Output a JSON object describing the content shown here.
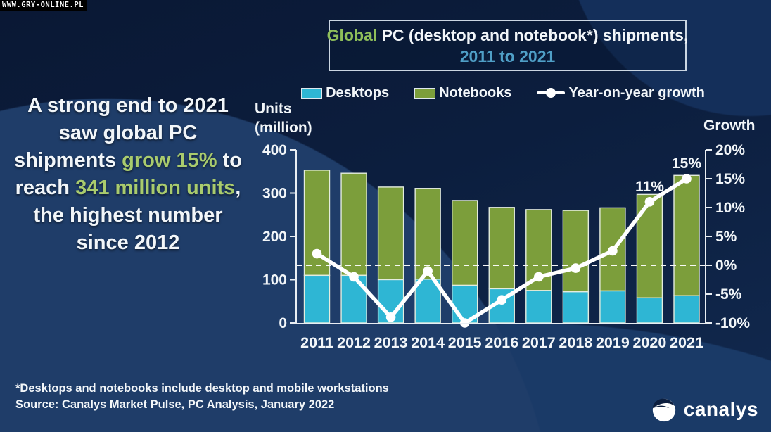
{
  "watermark": "WWW.GRY-ONLINE.PL",
  "title": {
    "line1_segments": [
      {
        "text": "Global",
        "highlight": "green"
      },
      {
        "text": " PC (desktop and notebook*) shipments,",
        "highlight": "none"
      }
    ],
    "subtitle": "2011 to 2021"
  },
  "legend": [
    {
      "label": "Desktops",
      "swatch": "rect",
      "color": "#2EB6D4"
    },
    {
      "label": "Notebooks",
      "swatch": "rect",
      "color": "#7C9E3B"
    },
    {
      "label": "Year-on-year growth",
      "swatch": "line",
      "color": "#FFFFFF"
    }
  ],
  "callout_segments": [
    {
      "text": "A strong end to 2021 saw global PC shipments ",
      "highlight": "none"
    },
    {
      "text": "grow 15%",
      "highlight": "green"
    },
    {
      "text": " to reach ",
      "highlight": "none"
    },
    {
      "text": "341 million units",
      "highlight": "green"
    },
    {
      "text": ", the highest number since 2012",
      "highlight": "none"
    }
  ],
  "axes": {
    "left_title_line1": "Units",
    "left_title_line2": "(million)",
    "right_title": "Growth"
  },
  "footnote": "*Desktops and notebooks include desktop and mobile workstations",
  "source": "Source: Canalys Market Pulse, PC Analysis, January 2022",
  "logo_text": "canalys",
  "colors": {
    "desktop_bar": "#2EB6D4",
    "notebook_bar": "#7C9E3B",
    "growth_line": "#FFFFFF",
    "title_green": "#8EBE5A",
    "subtitle_blue": "#4F9FC7",
    "callout_green": "#A9CB6D",
    "axis_stroke": "#E9EEF3",
    "bar_outline": "#E4ECDE",
    "background": "#0C1E3E"
  },
  "chart_data": {
    "type": "bar",
    "subtype": "stacked-bars-with-line",
    "title": "Global PC (desktop and notebook*) shipments, 2011 to 2021",
    "categories": [
      "2011",
      "2012",
      "2013",
      "2014",
      "2015",
      "2016",
      "2017",
      "2018",
      "2019",
      "2020",
      "2021"
    ],
    "series": [
      {
        "name": "Desktops",
        "type": "bar",
        "stack": 0,
        "color": "#2EB6D4",
        "values": [
          110,
          110,
          100,
          101,
          87,
          79,
          75,
          72,
          74,
          58,
          63
        ]
      },
      {
        "name": "Notebooks",
        "type": "bar",
        "stack": 1,
        "color": "#7C9E3B",
        "values": [
          243,
          236,
          214,
          210,
          196,
          188,
          187,
          188,
          192,
          239,
          278
        ]
      },
      {
        "name": "Year-on-year growth",
        "type": "line",
        "axis": "right",
        "color": "#FFFFFF",
        "values": [
          2,
          -2,
          -9,
          -1,
          -10,
          -6,
          -2,
          -0.5,
          2.5,
          11,
          15
        ]
      }
    ],
    "totals_millions": [
      353,
      346,
      314,
      311,
      283,
      267,
      262,
      260,
      266,
      297,
      341
    ],
    "left_axis": {
      "label": "Units (million)",
      "range": [
        0,
        400
      ],
      "ticks": [
        0,
        100,
        200,
        300,
        400
      ]
    },
    "right_axis": {
      "label": "Growth",
      "range": [
        -10,
        20
      ],
      "ticks": [
        -10,
        -5,
        0,
        5,
        10,
        15,
        20
      ],
      "suffix": "%"
    },
    "annotations": [
      {
        "category": "2020",
        "label": "11%"
      },
      {
        "category": "2021",
        "label": "15%"
      }
    ],
    "zero_line_dashed": true,
    "legend_position": "top",
    "grid": false
  }
}
